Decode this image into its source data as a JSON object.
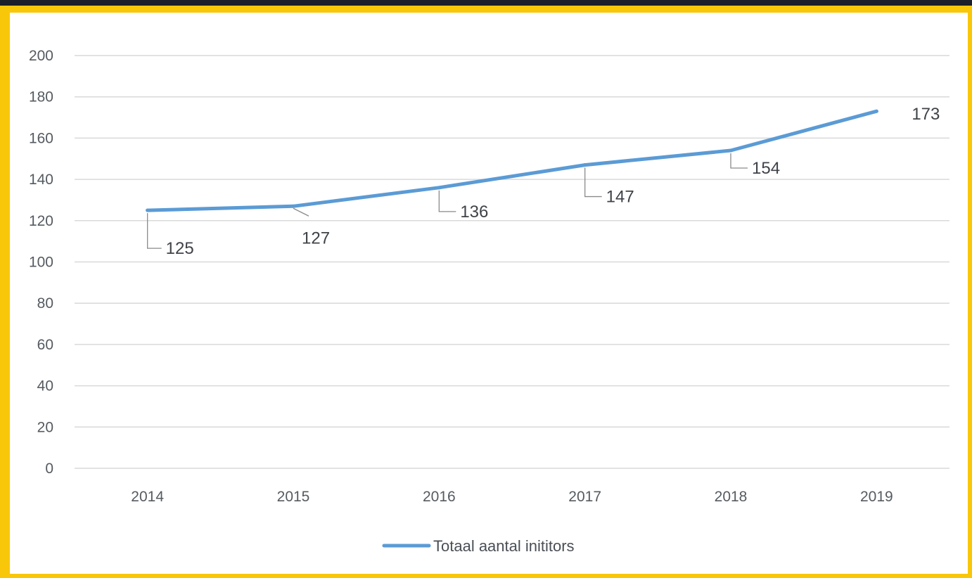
{
  "chart_data": {
    "type": "line",
    "categories": [
      "2014",
      "2015",
      "2016",
      "2017",
      "2018",
      "2019"
    ],
    "series": [
      {
        "name": "Totaal aantal inititors",
        "values": [
          125,
          127,
          136,
          147,
          154,
          173
        ]
      }
    ],
    "data_labels": [
      "125",
      "127",
      "136",
      "147",
      "154",
      "173"
    ],
    "yticks": [
      0,
      20,
      40,
      60,
      80,
      100,
      120,
      140,
      160,
      180,
      200
    ],
    "ylim": [
      0,
      200
    ],
    "grid": true,
    "legend_position": "bottom",
    "colors": {
      "series": "#5b9bd5",
      "grid": "#d9d9d9",
      "frame": "#f9c70a",
      "outer": "#1b1f2a"
    }
  }
}
